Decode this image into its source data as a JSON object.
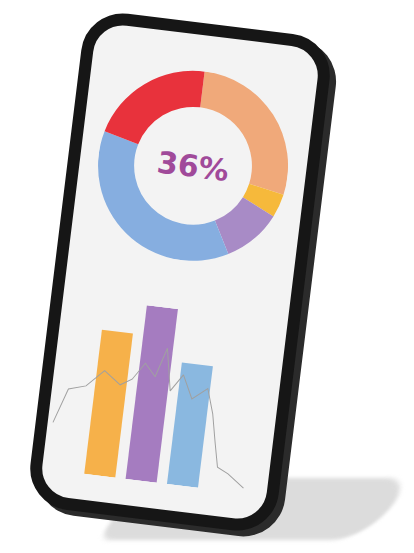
{
  "chart_data": [
    {
      "type": "pie",
      "values": [
        28,
        4,
        10,
        37,
        21
      ],
      "colors": [
        "#f0a97a",
        "#f6b93b",
        "#a88bc6",
        "#86aee0",
        "#e8323c"
      ],
      "annotations": [
        {
          "text": "36%"
        }
      ]
    },
    {
      "type": "bar",
      "x": [
        1,
        2,
        3
      ],
      "values": [
        83,
        100,
        70
      ],
      "colors": [
        "#f6b14a",
        "#a57cc0",
        "#8ab8e0"
      ],
      "xlim": [
        -0.3,
        4.5
      ],
      "ylim": [
        0,
        100
      ],
      "tick_labels": false,
      "grid": false
    },
    {
      "type": "line",
      "x": [
        -0.27,
        0,
        0.41,
        0.81,
        1.22,
        1.49,
        1.76,
        2.03,
        2.24,
        2.43,
        2.7,
        2.97,
        3.32,
        3.51,
        3.65,
        3.78,
        4.05,
        4.46
      ],
      "values": [
        27,
        47,
        50,
        60,
        53,
        57,
        67,
        60,
        77,
        53,
        63,
        50,
        57,
        43,
        27,
        13,
        10,
        3
      ],
      "color": "#a0a0a0",
      "xlim": [
        -0.3,
        4.5
      ],
      "ylim": [
        0,
        100
      ],
      "tick_labels": false,
      "grid": false
    }
  ]
}
